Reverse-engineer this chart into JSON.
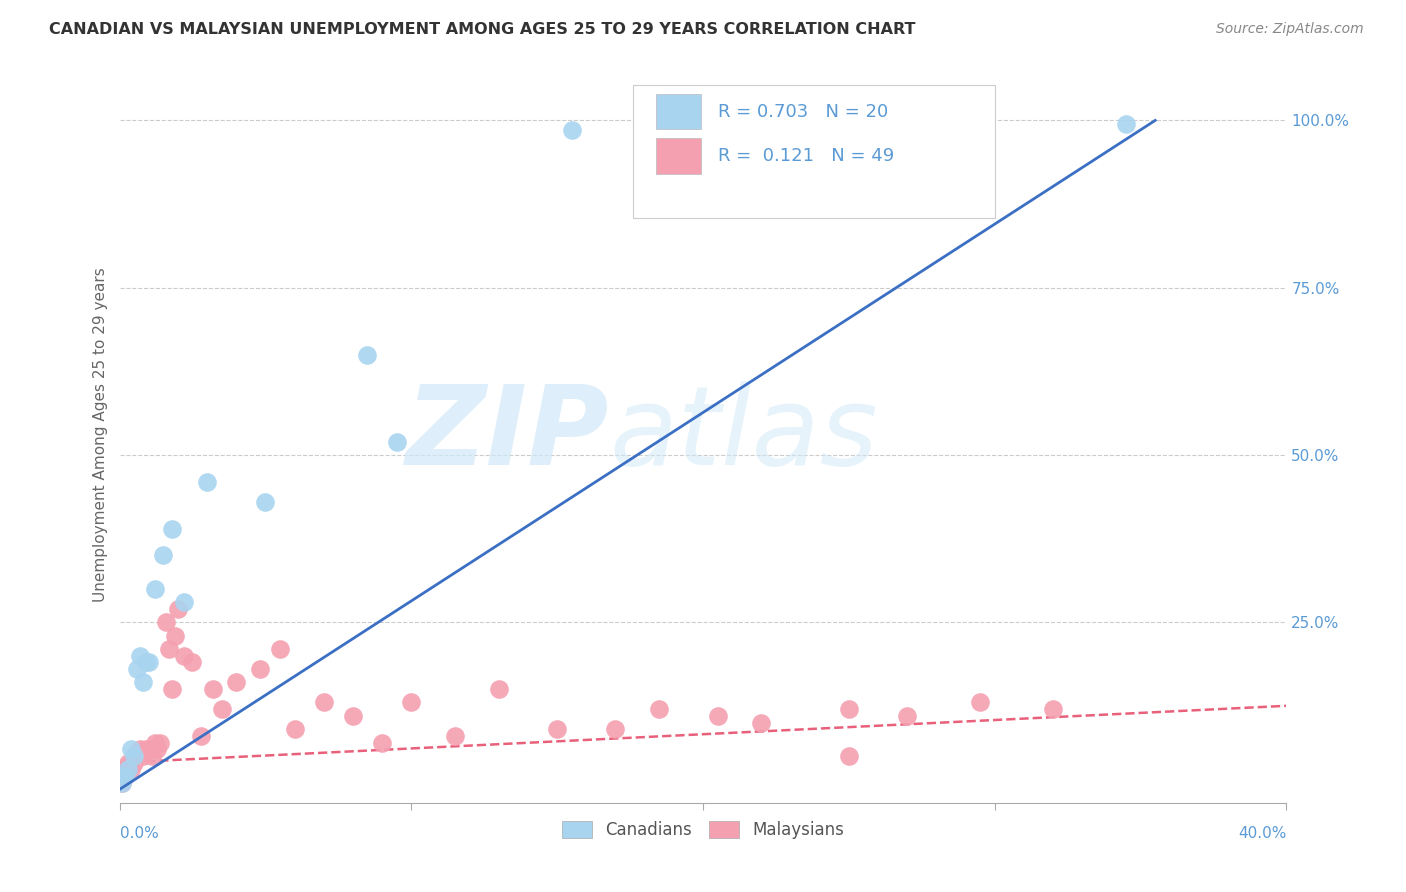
{
  "title": "CANADIAN VS MALAYSIAN UNEMPLOYMENT AMONG AGES 25 TO 29 YEARS CORRELATION CHART",
  "source": "Source: ZipAtlas.com",
  "ylabel": "Unemployment Among Ages 25 to 29 years",
  "legend_canadian_R": "0.703",
  "legend_canadian_N": "20",
  "legend_malaysian_R": "0.121",
  "legend_malaysian_N": "49",
  "canadian_color": "#A8D4F0",
  "malaysian_color": "#F4A0B0",
  "canadian_line_color": "#3B6FC4",
  "malaysian_line_color": "#E8607A",
  "watermark_zip": "ZIP",
  "watermark_atlas": "atlas",
  "xlim": [
    0.0,
    0.4
  ],
  "ylim": [
    -0.02,
    1.08
  ],
  "background_color": "#FFFFFF",
  "title_color": "#333333",
  "source_color": "#888888",
  "right_axis_color": "#5B9BD5",
  "legend_text_color": "#5B9BD5",
  "canadian_scatter_x": [
    0.001,
    0.002,
    0.003,
    0.004,
    0.005,
    0.006,
    0.007,
    0.008,
    0.009,
    0.01,
    0.012,
    0.015,
    0.018,
    0.022,
    0.03,
    0.05,
    0.085,
    0.095,
    0.155,
    0.345
  ],
  "canadian_scatter_y": [
    0.01,
    0.02,
    0.03,
    0.06,
    0.05,
    0.18,
    0.2,
    0.16,
    0.19,
    0.19,
    0.3,
    0.35,
    0.39,
    0.28,
    0.46,
    0.43,
    0.65,
    0.52,
    0.985,
    0.995
  ],
  "malaysian_scatter_x": [
    0.001,
    0.001,
    0.002,
    0.002,
    0.003,
    0.003,
    0.004,
    0.004,
    0.005,
    0.005,
    0.006,
    0.007,
    0.008,
    0.009,
    0.01,
    0.011,
    0.012,
    0.013,
    0.014,
    0.016,
    0.017,
    0.018,
    0.019,
    0.02,
    0.022,
    0.025,
    0.028,
    0.032,
    0.035,
    0.04,
    0.048,
    0.055,
    0.06,
    0.07,
    0.08,
    0.09,
    0.1,
    0.115,
    0.13,
    0.15,
    0.17,
    0.185,
    0.205,
    0.22,
    0.25,
    0.27,
    0.295,
    0.32,
    0.25
  ],
  "malaysian_scatter_y": [
    0.02,
    0.01,
    0.03,
    0.02,
    0.03,
    0.04,
    0.04,
    0.03,
    0.05,
    0.04,
    0.05,
    0.06,
    0.05,
    0.06,
    0.06,
    0.05,
    0.07,
    0.06,
    0.07,
    0.25,
    0.21,
    0.15,
    0.23,
    0.27,
    0.2,
    0.19,
    0.08,
    0.15,
    0.12,
    0.16,
    0.18,
    0.21,
    0.09,
    0.13,
    0.11,
    0.07,
    0.13,
    0.08,
    0.15,
    0.09,
    0.09,
    0.12,
    0.11,
    0.1,
    0.12,
    0.11,
    0.13,
    0.12,
    0.05
  ],
  "canadian_line_x": [
    0.0,
    0.355
  ],
  "canadian_line_y": [
    0.0,
    1.0
  ],
  "malaysian_line_x": [
    0.0,
    0.4
  ],
  "malaysian_line_y": [
    0.04,
    0.125
  ],
  "gridline_y": [
    0.25,
    0.5,
    0.75,
    1.0
  ],
  "xtick_positions": [
    0.0,
    0.1,
    0.2,
    0.3,
    0.4
  ],
  "ytick_right": [
    1.0,
    0.75,
    0.5,
    0.25
  ],
  "ytick_right_labels": [
    "100.0%",
    "75.0%",
    "50.0%",
    "25.0%"
  ]
}
